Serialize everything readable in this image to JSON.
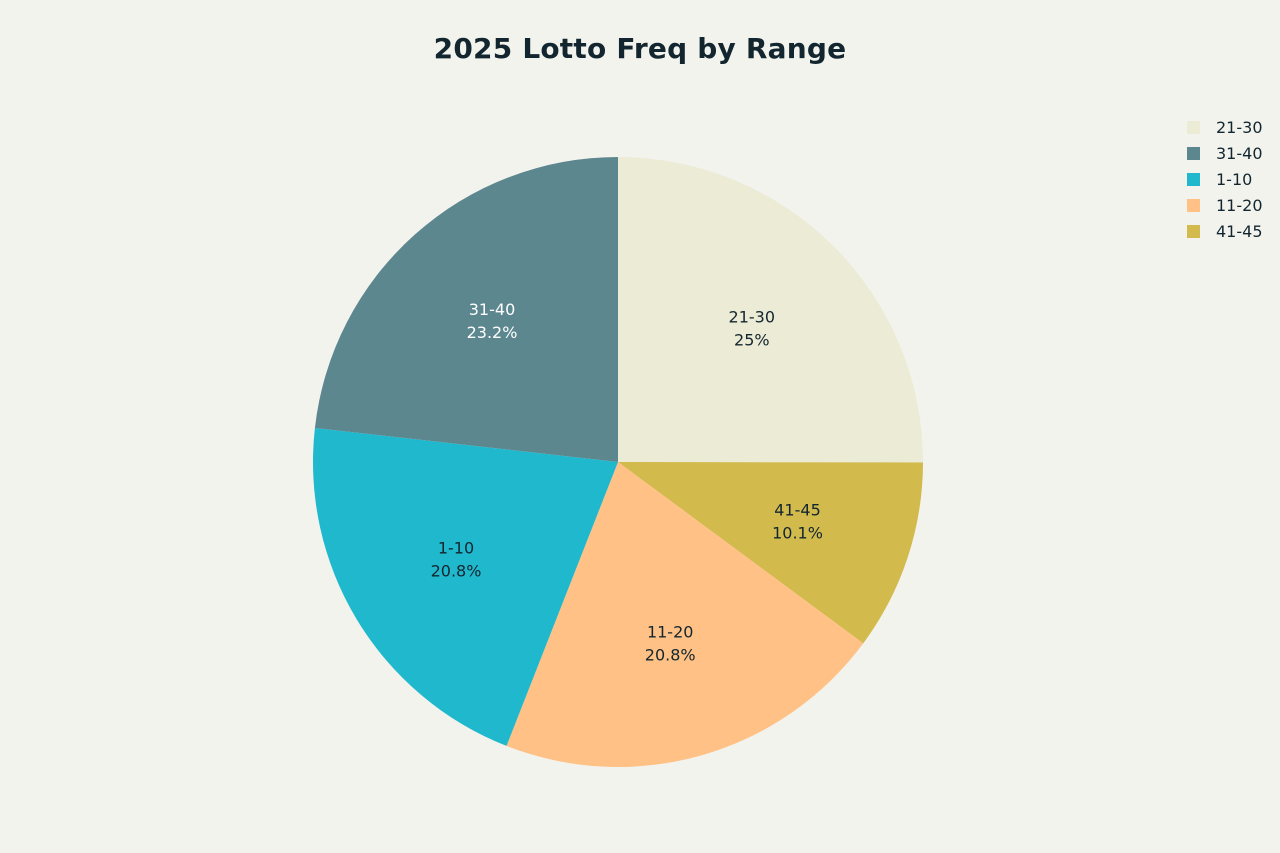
{
  "chart_data": {
    "type": "pie",
    "title": "2025 Lotto Freq by Range",
    "legend_position": "top-right",
    "slices": [
      {
        "label": "21-30",
        "value": 25.0,
        "percent_label": "25%",
        "color": "#ecebd6",
        "text_color": "#13262f"
      },
      {
        "label": "41-45",
        "value": 10.1,
        "percent_label": "10.1%",
        "color": "#d2ba4c",
        "text_color": "#13262f"
      },
      {
        "label": "11-20",
        "value": 20.8,
        "percent_label": "20.8%",
        "color": "#ffc185",
        "text_color": "#13262f"
      },
      {
        "label": "1-10",
        "value": 20.8,
        "percent_label": "20.8%",
        "color": "#1fb8cd",
        "text_color": "#13262f"
      },
      {
        "label": "31-40",
        "value": 23.2,
        "percent_label": "23.2%",
        "color": "#5d878f",
        "text_color": "#ffffff"
      }
    ],
    "legend": [
      {
        "label": "21-30",
        "color": "#ecebd6"
      },
      {
        "label": "31-40",
        "color": "#5d878f"
      },
      {
        "label": "1-10",
        "color": "#1fb8cd"
      },
      {
        "label": "11-20",
        "color": "#ffc185"
      },
      {
        "label": "41-45",
        "color": "#d2ba4c"
      }
    ]
  }
}
